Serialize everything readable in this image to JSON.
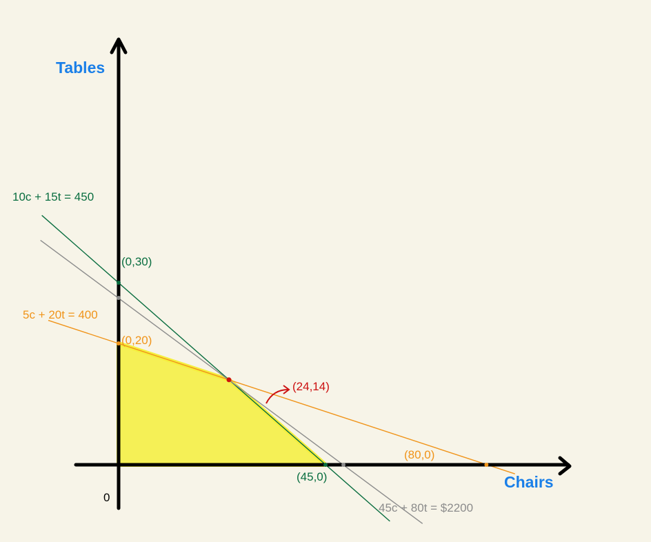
{
  "chart_data": {
    "type": "line",
    "xlabel": "Chairs",
    "ylabel": "Tables",
    "origin_label": "0",
    "xlim": [
      -10,
      110
    ],
    "ylim": [
      -10,
      105
    ],
    "colors": {
      "background": "#f7f4e8",
      "axis": "#000000",
      "axis_title": "#1a7fe8",
      "labor": "#0a6e40",
      "wood": "#f0941a",
      "profit": "#8c8c8c",
      "optimum": "#cc1111",
      "feasible": "#f5ef3c"
    },
    "series": [
      {
        "name": "10c + 15t = 450",
        "color_key": "labor",
        "x": [
          -16.7,
          59.0
        ],
        "y": [
          41.1,
          -9.3
        ]
      },
      {
        "name": "5c + 20t = 400",
        "color_key": "wood",
        "x": [
          -15.3,
          86.2
        ],
        "y": [
          23.8,
          -1.5
        ]
      },
      {
        "name": "45c + 80t = $2200",
        "color_key": "profit",
        "x": [
          -17.0,
          66.1
        ],
        "y": [
          37.0,
          -9.7
        ]
      }
    ],
    "feasible_region": {
      "x": [
        0,
        0,
        24,
        45
      ],
      "y": [
        0,
        20,
        14,
        0
      ]
    },
    "points": [
      {
        "label": "(0,30)",
        "x": 0,
        "y": 30,
        "color_key": "labor"
      },
      {
        "label": "(45,0)",
        "x": 45,
        "y": 0,
        "color_key": "labor"
      },
      {
        "label": "(0,20)",
        "x": 0,
        "y": 20,
        "color_key": "wood"
      },
      {
        "label": "(80,0)",
        "x": 80,
        "y": 0,
        "color_key": "wood"
      },
      {
        "label": "(24,14)",
        "x": 24,
        "y": 14,
        "color_key": "optimum"
      }
    ],
    "profit_intercepts": [
      {
        "x": 0,
        "y": 27.5
      },
      {
        "x": 48.9,
        "y": 0
      }
    ]
  }
}
